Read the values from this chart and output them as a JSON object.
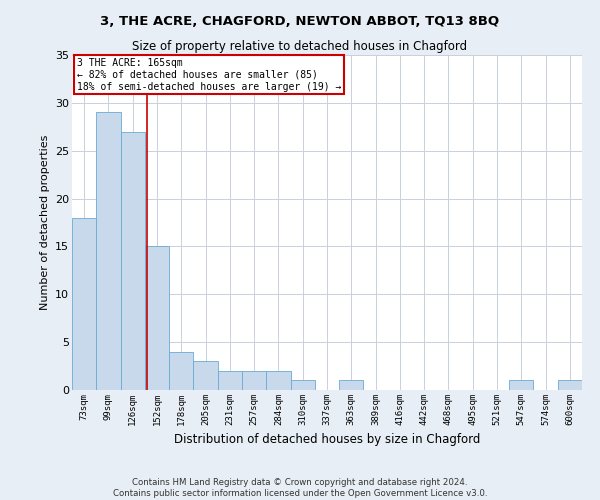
{
  "title": "3, THE ACRE, CHAGFORD, NEWTON ABBOT, TQ13 8BQ",
  "subtitle": "Size of property relative to detached houses in Chagford",
  "xlabel": "Distribution of detached houses by size in Chagford",
  "ylabel": "Number of detached properties",
  "categories": [
    "73sqm",
    "99sqm",
    "126sqm",
    "152sqm",
    "178sqm",
    "205sqm",
    "231sqm",
    "257sqm",
    "284sqm",
    "310sqm",
    "337sqm",
    "363sqm",
    "389sqm",
    "416sqm",
    "442sqm",
    "468sqm",
    "495sqm",
    "521sqm",
    "547sqm",
    "574sqm",
    "600sqm"
  ],
  "values": [
    18,
    29,
    27,
    15,
    4,
    3,
    2,
    2,
    2,
    1,
    0,
    1,
    0,
    0,
    0,
    0,
    0,
    0,
    1,
    0,
    1
  ],
  "bar_color": "#c8d9ec",
  "bar_edge_color": "#6aaad4",
  "ylim": [
    0,
    35
  ],
  "yticks": [
    0,
    5,
    10,
    15,
    20,
    25,
    30,
    35
  ],
  "annotation_line1": "3 THE ACRE: 165sqm",
  "annotation_line2": "← 82% of detached houses are smaller (85)",
  "annotation_line3": "18% of semi-detached houses are larger (19) →",
  "annotation_box_color": "#ffffff",
  "annotation_box_edge": "#cc0000",
  "vline_color": "#cc0000",
  "vline_x": 2.58,
  "footer": "Contains HM Land Registry data © Crown copyright and database right 2024.\nContains public sector information licensed under the Open Government Licence v3.0.",
  "bg_color": "#e8eef5",
  "plot_bg_color": "#ffffff",
  "grid_color": "#c8d0dc"
}
